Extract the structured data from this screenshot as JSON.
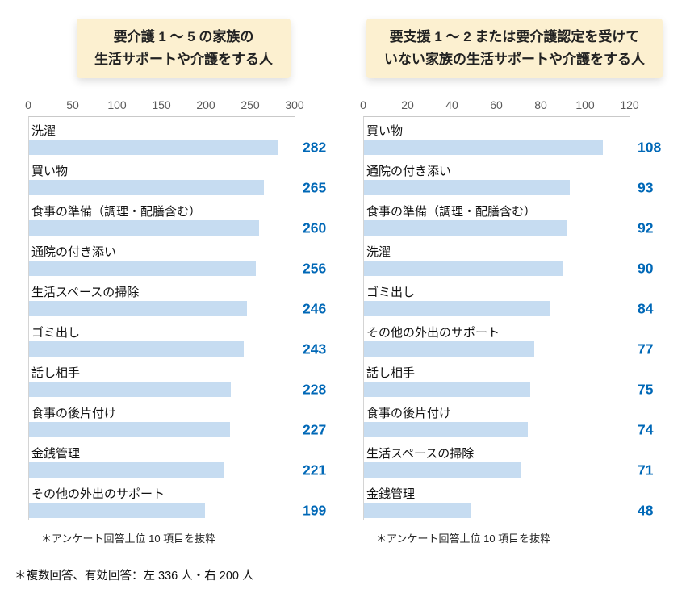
{
  "page": {
    "footnote": "＊複数回答、有効回答：左 336 人・右 200 人"
  },
  "colors": {
    "bar": "#c6dcf1",
    "value": "#0068b7",
    "title_box_bg": "#fcf0d0"
  },
  "chart_data": [
    {
      "type": "bar",
      "orientation": "horizontal",
      "title_lines": [
        "要介護 1 〜 5 の家族の",
        "生活サポートや介護をする人"
      ],
      "xlim": [
        0,
        300
      ],
      "ticks": [
        0,
        50,
        100,
        150,
        200,
        250,
        300
      ],
      "grid": false,
      "categories": [
        "洗濯",
        "買い物",
        "食事の準備（調理・配膳含む）",
        "通院の付き添い",
        "生活スペースの掃除",
        "ゴミ出し",
        "話し相手",
        "食事の後片付け",
        "金銭管理",
        "その他の外出のサポート"
      ],
      "values": [
        282,
        265,
        260,
        256,
        246,
        243,
        228,
        227,
        221,
        199
      ],
      "note": "＊アンケート回答上位 10 項目を抜粋"
    },
    {
      "type": "bar",
      "orientation": "horizontal",
      "title_lines": [
        "要支援 1 〜 2 または要介護認定を受けて",
        "いない家族の生活サポートや介護をする人"
      ],
      "xlim": [
        0,
        120
      ],
      "ticks": [
        0,
        20,
        40,
        60,
        80,
        100,
        120
      ],
      "grid": false,
      "categories": [
        "買い物",
        "通院の付き添い",
        "食事の準備（調理・配膳含む）",
        "洗濯",
        "ゴミ出し",
        "その他の外出のサポート",
        "話し相手",
        "食事の後片付け",
        "生活スペースの掃除",
        "金銭管理"
      ],
      "values": [
        108,
        93,
        92,
        90,
        84,
        77,
        75,
        74,
        71,
        48
      ],
      "note": "＊アンケート回答上位 10 項目を抜粋"
    }
  ]
}
